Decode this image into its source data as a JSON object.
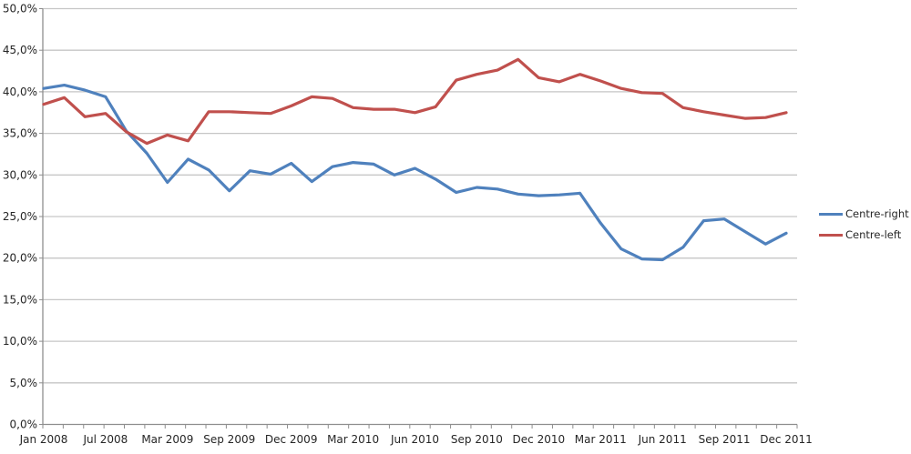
{
  "chart_data": {
    "type": "line",
    "title": "",
    "xlabel": "",
    "ylabel": "",
    "ylim": [
      0,
      50
    ],
    "y_tick_step": 5,
    "y_tick_labels": [
      "0,0%",
      "5,0%",
      "10,0%",
      "15,0%",
      "20,0%",
      "25,0%",
      "30,0%",
      "35,0%",
      "40,0%",
      "45,0%",
      "50,0%"
    ],
    "x_tick_labels": [
      "Jan 2008",
      "Jul 2008",
      "Mar 2009",
      "Sep 2009",
      "Dec 2009",
      "Mar 2010",
      "Jun 2010",
      "Sep 2010",
      "Dec 2010",
      "Mar 2011",
      "Jun 2011",
      "Sep 2011",
      "Dec 2011"
    ],
    "x_label_indices": [
      0,
      3,
      6,
      9,
      12,
      15,
      18,
      21,
      24,
      27,
      30,
      33,
      36
    ],
    "grid": true,
    "legend_position": "right",
    "series": [
      {
        "name": "Centre-right",
        "color": "#4F81BD",
        "values": [
          40.4,
          40.8,
          40.2,
          39.4,
          35.3,
          32.6,
          29.1,
          31.9,
          30.6,
          28.1,
          30.5,
          30.1,
          31.4,
          29.2,
          31.0,
          31.5,
          31.3,
          30.0,
          30.8,
          29.5,
          27.9,
          28.5,
          28.3,
          27.7,
          27.5,
          27.6,
          27.8,
          24.2,
          21.1,
          19.9,
          19.8,
          21.3,
          24.5,
          24.7,
          23.2,
          21.7,
          23.0
        ]
      },
      {
        "name": "Centre-left",
        "color": "#C0504D",
        "values": [
          38.5,
          39.3,
          37.0,
          37.4,
          35.2,
          33.8,
          34.8,
          34.1,
          37.6,
          37.6,
          37.5,
          37.4,
          38.3,
          39.4,
          39.2,
          38.1,
          37.9,
          37.9,
          37.5,
          38.2,
          41.4,
          42.1,
          42.6,
          43.9,
          41.7,
          41.2,
          42.1,
          41.3,
          40.4,
          39.9,
          39.8,
          38.1,
          37.6,
          37.2,
          36.8,
          36.9,
          37.5
        ]
      }
    ],
    "style": {
      "gridline_color": "#C6C6C6",
      "axis_color": "#8E8E8E",
      "tick_color": "#8E8E8E",
      "label_color": "#262626",
      "line_width": 3.2
    }
  }
}
